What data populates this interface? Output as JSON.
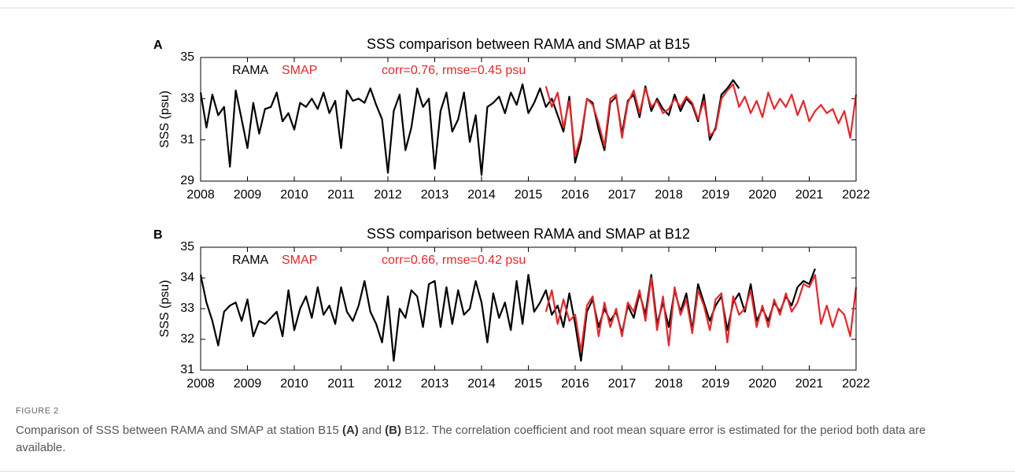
{
  "chart_data": [
    {
      "type": "line",
      "panel": "A",
      "title": "SSS comparison between RAMA and SMAP at B15",
      "annotation": "corr=0.76, rmse=0.45 psu",
      "ylabel": "SSS (psu)",
      "x": [
        2008,
        2008.125,
        2008.25,
        2008.375,
        2008.5,
        2008.625,
        2008.75,
        2008.875,
        2009,
        2009.125,
        2009.25,
        2009.375,
        2009.5,
        2009.625,
        2009.75,
        2009.875,
        2010,
        2010.125,
        2010.25,
        2010.375,
        2010.5,
        2010.625,
        2010.75,
        2010.875,
        2011,
        2011.125,
        2011.25,
        2011.375,
        2011.5,
        2011.625,
        2011.75,
        2011.875,
        2012,
        2012.125,
        2012.25,
        2012.375,
        2012.5,
        2012.625,
        2012.75,
        2012.875,
        2013,
        2013.125,
        2013.25,
        2013.375,
        2013.5,
        2013.625,
        2013.75,
        2013.875,
        2014,
        2014.125,
        2014.25,
        2014.375,
        2014.5,
        2014.625,
        2014.75,
        2014.875,
        2015,
        2015.125,
        2015.25,
        2015.375,
        2015.5,
        2015.625,
        2015.75,
        2015.875,
        2016,
        2016.125,
        2016.25,
        2016.375,
        2016.5,
        2016.625,
        2016.75,
        2016.875,
        2017,
        2017.125,
        2017.25,
        2017.375,
        2017.5,
        2017.625,
        2017.75,
        2017.875,
        2018,
        2018.125,
        2018.25,
        2018.375,
        2018.5,
        2018.625,
        2018.75,
        2018.875,
        2019,
        2019.125,
        2019.25,
        2019.375,
        2019.5,
        2019.625,
        2019.75,
        2019.875,
        2020,
        2020.125,
        2020.25,
        2020.375,
        2020.5,
        2020.625,
        2020.75,
        2020.875,
        2021,
        2021.125,
        2021.25,
        2021.375,
        2021.5,
        2021.625,
        2021.75,
        2021.875,
        2022
      ],
      "xlim": [
        2008,
        2022
      ],
      "xticks": [
        2008,
        2009,
        2010,
        2011,
        2012,
        2013,
        2014,
        2015,
        2016,
        2017,
        2018,
        2019,
        2020,
        2021,
        2022
      ],
      "ylim": [
        29,
        35
      ],
      "yticks": [
        29,
        31,
        33,
        35
      ],
      "series": [
        {
          "name": "RAMA",
          "color": "#000000",
          "values": [
            33.3,
            31.6,
            33.2,
            32.2,
            32.6,
            29.7,
            33.4,
            32.0,
            30.6,
            32.8,
            31.3,
            32.5,
            32.6,
            33.3,
            31.9,
            32.3,
            31.5,
            32.8,
            32.6,
            33.0,
            32.5,
            33.3,
            32.3,
            32.9,
            30.6,
            33.4,
            32.9,
            33.0,
            32.8,
            33.5,
            32.7,
            32.0,
            29.4,
            32.4,
            33.2,
            30.5,
            31.6,
            33.5,
            32.6,
            33.0,
            29.6,
            32.4,
            33.3,
            31.4,
            32.0,
            33.3,
            30.9,
            32.2,
            29.3,
            32.6,
            32.8,
            33.1,
            32.3,
            33.3,
            32.7,
            33.7,
            32.3,
            32.8,
            33.5,
            32.6,
            33.0,
            32.2,
            31.4,
            33.1,
            29.9,
            31.0,
            33.0,
            32.8,
            31.5,
            30.5,
            32.8,
            33.1,
            31.3,
            32.9,
            33.2,
            32.1,
            33.6,
            32.4,
            33.0,
            32.5,
            32.2,
            33.2,
            32.4,
            33.0,
            32.7,
            31.9,
            33.2,
            31.0,
            31.6,
            33.2,
            33.5,
            33.9,
            33.5,
            null,
            null,
            null,
            null,
            null,
            null,
            null,
            null,
            null,
            null,
            null,
            null,
            null,
            null,
            null,
            null,
            null,
            null,
            null,
            null
          ]
        },
        {
          "name": "SMAP",
          "color": "#e8262b",
          "values": [
            null,
            null,
            null,
            null,
            null,
            null,
            null,
            null,
            null,
            null,
            null,
            null,
            null,
            null,
            null,
            null,
            null,
            null,
            null,
            null,
            null,
            null,
            null,
            null,
            null,
            null,
            null,
            null,
            null,
            null,
            null,
            null,
            null,
            null,
            null,
            null,
            null,
            null,
            null,
            null,
            null,
            null,
            null,
            null,
            null,
            null,
            null,
            null,
            null,
            null,
            null,
            null,
            null,
            null,
            null,
            null,
            null,
            null,
            null,
            33.6,
            32.6,
            33.3,
            31.6,
            32.9,
            30.2,
            31.2,
            33.0,
            32.7,
            31.8,
            30.7,
            33.0,
            33.2,
            31.1,
            32.8,
            33.4,
            32.3,
            33.5,
            32.6,
            32.9,
            32.3,
            32.5,
            33.0,
            32.6,
            33.1,
            32.8,
            32.0,
            32.9,
            31.2,
            31.5,
            33.0,
            33.4,
            33.7,
            32.6,
            33.1,
            32.3,
            32.9,
            32.1,
            33.3,
            32.5,
            33.0,
            32.6,
            33.2,
            32.2,
            32.9,
            31.9,
            32.4,
            32.7,
            32.3,
            32.5,
            31.8,
            32.4,
            31.1,
            33.2
          ]
        }
      ]
    },
    {
      "type": "line",
      "panel": "B",
      "title": "SSS comparison between RAMA and SMAP at B12",
      "annotation": "corr=0.66, rmse=0.42 psu",
      "ylabel": "SSS (psu)",
      "x": [
        2008,
        2008.125,
        2008.25,
        2008.375,
        2008.5,
        2008.625,
        2008.75,
        2008.875,
        2009,
        2009.125,
        2009.25,
        2009.375,
        2009.5,
        2009.625,
        2009.75,
        2009.875,
        2010,
        2010.125,
        2010.25,
        2010.375,
        2010.5,
        2010.625,
        2010.75,
        2010.875,
        2011,
        2011.125,
        2011.25,
        2011.375,
        2011.5,
        2011.625,
        2011.75,
        2011.875,
        2012,
        2012.125,
        2012.25,
        2012.375,
        2012.5,
        2012.625,
        2012.75,
        2012.875,
        2013,
        2013.125,
        2013.25,
        2013.375,
        2013.5,
        2013.625,
        2013.75,
        2013.875,
        2014,
        2014.125,
        2014.25,
        2014.375,
        2014.5,
        2014.625,
        2014.75,
        2014.875,
        2015,
        2015.125,
        2015.25,
        2015.375,
        2015.5,
        2015.625,
        2015.75,
        2015.875,
        2016,
        2016.125,
        2016.25,
        2016.375,
        2016.5,
        2016.625,
        2016.75,
        2016.875,
        2017,
        2017.125,
        2017.25,
        2017.375,
        2017.5,
        2017.625,
        2017.75,
        2017.875,
        2018,
        2018.125,
        2018.25,
        2018.375,
        2018.5,
        2018.625,
        2018.75,
        2018.875,
        2019,
        2019.125,
        2019.25,
        2019.375,
        2019.5,
        2019.625,
        2019.75,
        2019.875,
        2020,
        2020.125,
        2020.25,
        2020.375,
        2020.5,
        2020.625,
        2020.75,
        2020.875,
        2021,
        2021.125,
        2021.25,
        2021.375,
        2021.5,
        2021.625,
        2021.75,
        2021.875,
        2022
      ],
      "xlim": [
        2008,
        2022
      ],
      "xticks": [
        2008,
        2009,
        2010,
        2011,
        2012,
        2013,
        2014,
        2015,
        2016,
        2017,
        2018,
        2019,
        2020,
        2021,
        2022
      ],
      "ylim": [
        31,
        35
      ],
      "yticks": [
        31,
        32,
        33,
        34,
        35
      ],
      "series": [
        {
          "name": "RAMA",
          "color": "#000000",
          "values": [
            34.1,
            33.2,
            32.6,
            31.8,
            32.9,
            33.1,
            33.2,
            32.6,
            33.3,
            32.1,
            32.6,
            32.5,
            32.7,
            32.9,
            32.1,
            33.6,
            32.3,
            33.0,
            33.4,
            32.7,
            33.7,
            32.8,
            33.1,
            32.5,
            33.7,
            32.9,
            32.6,
            33.1,
            33.9,
            32.9,
            32.5,
            31.9,
            33.4,
            31.3,
            33.0,
            32.7,
            33.6,
            33.4,
            32.4,
            33.8,
            33.9,
            32.4,
            33.7,
            32.5,
            33.6,
            32.8,
            33.0,
            33.9,
            33.2,
            31.9,
            33.5,
            32.7,
            33.2,
            32.3,
            33.9,
            32.5,
            34.1,
            32.9,
            33.2,
            33.6,
            32.8,
            33.1,
            32.4,
            33.5,
            32.5,
            31.3,
            32.9,
            33.3,
            32.4,
            33.0,
            32.6,
            32.9,
            32.2,
            33.1,
            32.7,
            33.5,
            32.8,
            34.1,
            32.5,
            33.2,
            32.4,
            33.6,
            32.9,
            33.5,
            32.3,
            33.8,
            33.2,
            32.6,
            33.1,
            33.4,
            32.3,
            33.2,
            33.5,
            32.9,
            33.8,
            32.6,
            33.0,
            32.6,
            33.2,
            32.9,
            33.4,
            33.1,
            33.7,
            33.9,
            33.8,
            34.3,
            null,
            null,
            null,
            null,
            null,
            null,
            null
          ]
        },
        {
          "name": "SMAP",
          "color": "#e8262b",
          "values": [
            null,
            null,
            null,
            null,
            null,
            null,
            null,
            null,
            null,
            null,
            null,
            null,
            null,
            null,
            null,
            null,
            null,
            null,
            null,
            null,
            null,
            null,
            null,
            null,
            null,
            null,
            null,
            null,
            null,
            null,
            null,
            null,
            null,
            null,
            null,
            null,
            null,
            null,
            null,
            null,
            null,
            null,
            null,
            null,
            null,
            null,
            null,
            null,
            null,
            null,
            null,
            null,
            null,
            null,
            null,
            null,
            null,
            null,
            null,
            32.9,
            33.6,
            32.5,
            33.3,
            32.6,
            32.8,
            31.6,
            33.1,
            33.4,
            32.1,
            33.2,
            32.4,
            33.0,
            32.1,
            33.2,
            32.9,
            33.6,
            32.6,
            34.0,
            32.3,
            33.4,
            31.8,
            33.7,
            32.8,
            33.3,
            32.2,
            33.6,
            33.1,
            32.3,
            33.3,
            33.5,
            31.9,
            33.4,
            32.8,
            33.0,
            33.6,
            32.4,
            33.1,
            32.4,
            33.3,
            32.8,
            33.5,
            32.9,
            33.2,
            33.8,
            33.7,
            34.1,
            32.5,
            33.1,
            32.4,
            33.0,
            32.8,
            32.1,
            33.7
          ]
        }
      ]
    }
  ],
  "figure": {
    "label": "FIGURE 2",
    "caption": [
      "Comparison of SSS between RAMA and SMAP at station B15 ",
      "(A)",
      " and ",
      "(B)",
      " B12. The correlation coefficient and root mean square error is estimated for the period both data are available."
    ]
  }
}
